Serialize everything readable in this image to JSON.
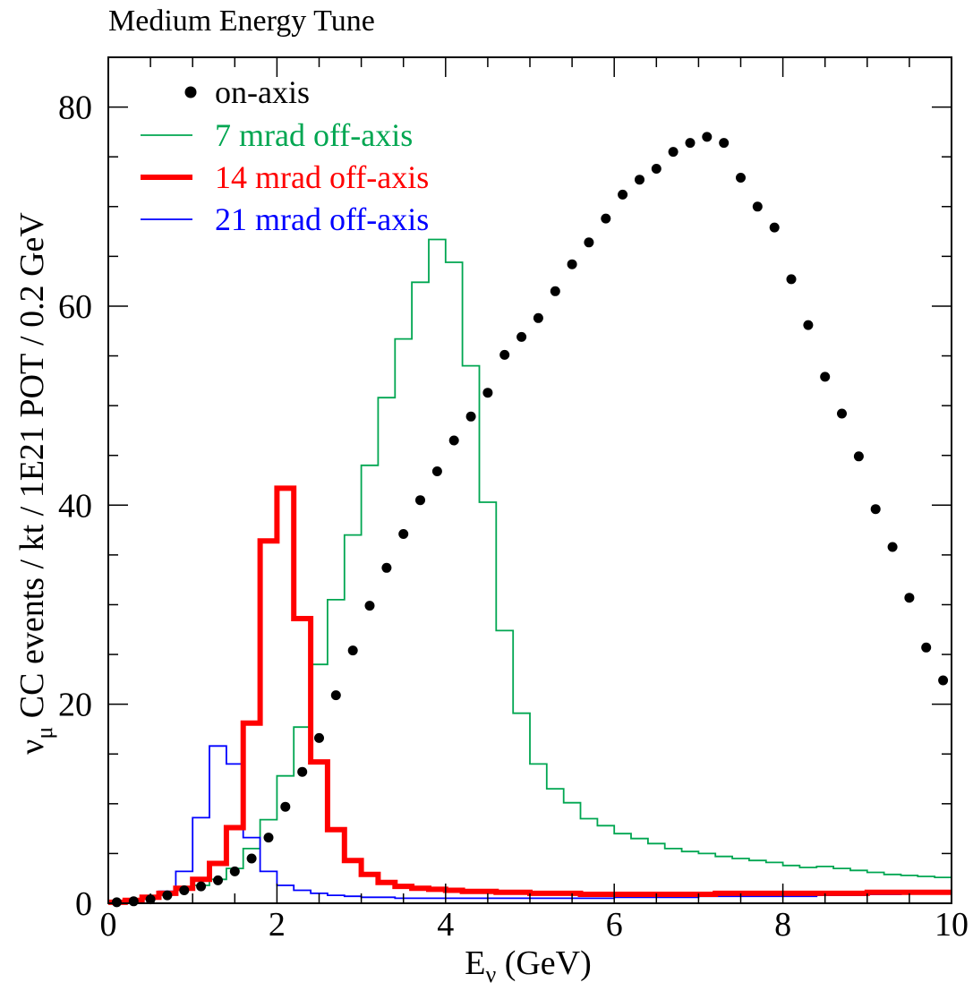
{
  "title": "Medium Energy Tune",
  "chart_data": {
    "type": "line",
    "xlabel": "E",
    "xlabel_sub": "ν",
    "xlabel_unit": " (GeV)",
    "ylabel_sym": "ν",
    "ylabel_sub": "μ",
    "ylabel_rest": " CC events / kt / 1E21 POT / 0.2 GeV",
    "xlim": [
      0,
      10
    ],
    "ylim": [
      0,
      85
    ],
    "xticks": [
      0,
      2,
      4,
      6,
      8,
      10
    ],
    "yticks": [
      0,
      20,
      40,
      60,
      80
    ],
    "grid": false,
    "legend_position": "top-left",
    "series": [
      {
        "name": "on-axis",
        "style": "points",
        "color": "#000000",
        "x": [
          0.1,
          0.3,
          0.5,
          0.7,
          0.9,
          1.1,
          1.3,
          1.5,
          1.7,
          1.9,
          2.1,
          2.3,
          2.5,
          2.7,
          2.9,
          3.1,
          3.3,
          3.5,
          3.7,
          3.9,
          4.1,
          4.3,
          4.5,
          4.7,
          4.9,
          5.1,
          5.3,
          5.5,
          5.7,
          5.9,
          6.1,
          6.3,
          6.5,
          6.7,
          6.9,
          7.1,
          7.3,
          7.5,
          7.7,
          7.9,
          8.1,
          8.3,
          8.5,
          8.7,
          8.9,
          9.1,
          9.3,
          9.5,
          9.7,
          9.9
        ],
        "y": [
          0.1,
          0.2,
          0.4,
          0.8,
          1.3,
          1.7,
          2.3,
          3.2,
          4.5,
          6.6,
          9.7,
          13.2,
          16.6,
          20.9,
          25.4,
          29.9,
          33.7,
          37.1,
          40.5,
          43.4,
          46.5,
          48.9,
          51.3,
          55.1,
          56.9,
          58.8,
          61.5,
          64.2,
          66.4,
          68.8,
          71.2,
          72.7,
          73.8,
          75.5,
          76.4,
          77.0,
          76.4,
          72.9,
          70.0,
          67.9,
          62.7,
          58.1,
          52.9,
          49.2,
          44.9,
          39.6,
          35.8,
          30.7,
          25.7,
          22.4
        ]
      },
      {
        "name": "7 mrad off-axis",
        "style": "step",
        "color": "#00a651",
        "x": [
          0,
          0.2,
          0.4,
          0.6,
          0.8,
          1.0,
          1.2,
          1.4,
          1.6,
          1.8,
          2.0,
          2.2,
          2.4,
          2.6,
          2.8,
          3.0,
          3.2,
          3.4,
          3.6,
          3.8,
          4.0,
          4.2,
          4.4,
          4.6,
          4.8,
          5.0,
          5.2,
          5.4,
          5.6,
          5.8,
          6.0,
          6.2,
          6.4,
          6.6,
          6.8,
          7.0,
          7.2,
          7.4,
          7.6,
          7.8,
          8.0,
          8.2,
          8.4,
          8.6,
          8.8,
          9.0,
          9.2,
          9.4,
          9.6,
          9.8
        ],
        "y": [
          0.1,
          0.2,
          0.5,
          1.0,
          1.5,
          1.8,
          2.4,
          3.5,
          5.5,
          8.4,
          12.8,
          17.7,
          24.0,
          30.5,
          37.0,
          44.0,
          50.8,
          56.7,
          62.4,
          66.7,
          64.4,
          54.0,
          40.3,
          27.4,
          19.1,
          14.0,
          11.5,
          10.1,
          8.5,
          7.8,
          7.0,
          6.5,
          6.0,
          5.5,
          5.2,
          5.0,
          4.7,
          4.5,
          4.3,
          4.1,
          3.8,
          3.6,
          3.7,
          3.5,
          3.3,
          3.1,
          2.9,
          2.8,
          2.7,
          2.6
        ]
      },
      {
        "name": "14 mrad off-axis",
        "style": "step",
        "color": "#ff0000",
        "x": [
          0,
          0.2,
          0.4,
          0.6,
          0.8,
          1.0,
          1.2,
          1.4,
          1.6,
          1.8,
          2.0,
          2.2,
          2.4,
          2.6,
          2.8,
          3.0,
          3.2,
          3.4,
          3.6,
          3.8,
          4.0,
          4.2,
          4.4,
          4.6,
          4.8,
          5.0,
          5.2,
          5.4,
          5.6,
          5.8,
          6.0,
          6.2,
          6.4,
          6.6,
          6.8,
          7.0,
          7.2,
          7.4,
          7.6,
          7.8,
          8.0,
          8.2,
          8.4,
          8.6,
          8.8,
          9.0,
          9.2,
          9.4,
          9.6,
          9.8
        ],
        "y": [
          0.1,
          0.3,
          0.6,
          1.0,
          1.5,
          2.4,
          4.0,
          7.6,
          18.1,
          36.4,
          41.7,
          28.6,
          14.2,
          7.4,
          4.3,
          2.9,
          2.1,
          1.7,
          1.5,
          1.4,
          1.3,
          1.2,
          1.2,
          1.1,
          1.1,
          1.0,
          1.0,
          1.0,
          0.9,
          0.9,
          0.9,
          0.9,
          0.9,
          0.9,
          0.9,
          0.9,
          1.0,
          1.0,
          1.0,
          1.0,
          1.0,
          1.0,
          1.0,
          1.0,
          1.0,
          1.1,
          1.1,
          1.1,
          1.1,
          1.1
        ]
      },
      {
        "name": "21 mrad off-axis",
        "style": "step",
        "color": "#0000ff",
        "x": [
          0,
          0.2,
          0.4,
          0.6,
          0.8,
          1.0,
          1.2,
          1.4,
          1.6,
          1.8,
          2.0,
          2.2,
          2.4,
          2.6,
          2.8,
          3.0,
          3.2,
          3.4,
          3.6,
          3.8,
          4.0,
          4.2,
          4.4,
          4.6,
          4.8,
          5.0,
          5.2,
          5.4,
          5.6,
          5.8,
          6.0,
          6.2,
          6.4,
          6.6,
          6.8,
          7.0,
          7.2,
          7.4,
          7.6,
          7.8,
          8.0,
          8.2,
          8.4,
          8.6,
          8.8,
          9.0,
          9.2,
          9.4,
          9.6,
          9.8
        ],
        "y": [
          0.1,
          0.3,
          0.6,
          1.2,
          3.2,
          8.6,
          15.8,
          14.0,
          6.6,
          3.2,
          1.8,
          1.3,
          1.0,
          0.8,
          0.7,
          0.6,
          0.6,
          0.5,
          0.5,
          0.5,
          0.5,
          0.5,
          0.5,
          0.5,
          0.5,
          0.5,
          0.5,
          0.5,
          0.5,
          0.5,
          0.6,
          0.6,
          0.6,
          0.6,
          0.6,
          0.7,
          0.7,
          0.7,
          0.7,
          0.7,
          0.7,
          0.7,
          0.8,
          0.8,
          0.8,
          0.9,
          0.9,
          1.0,
          1.1,
          1.2
        ]
      }
    ]
  }
}
